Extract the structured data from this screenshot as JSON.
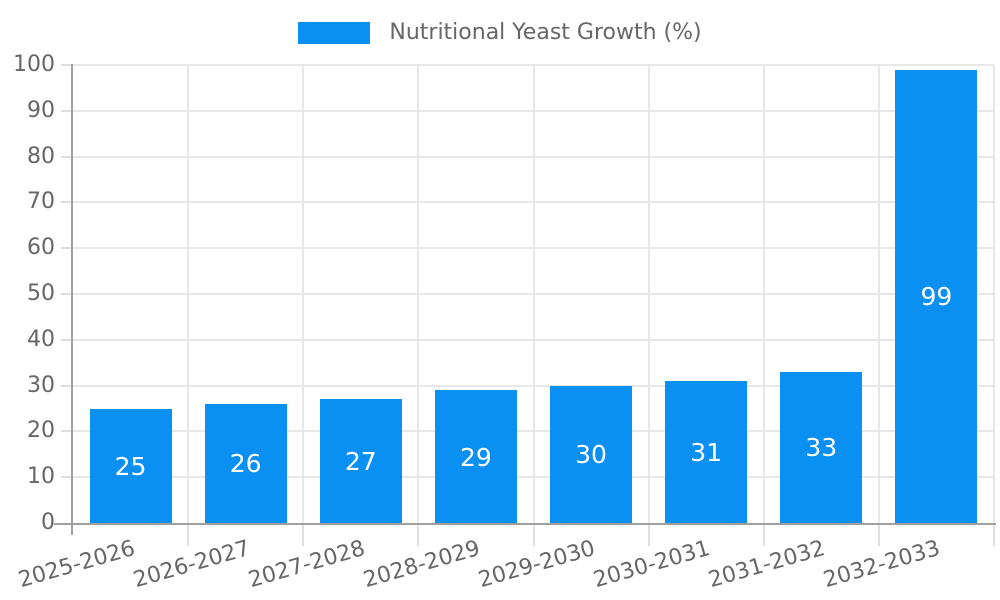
{
  "legend": {
    "label": "Nutritional Yeast Growth (%)"
  },
  "chart_data": {
    "type": "bar",
    "title": "Nutritional Yeast Growth (%)",
    "series_name": "Nutritional Yeast Growth (%)",
    "categories": [
      "2025-2026",
      "2026-2027",
      "2027-2028",
      "2028-2029",
      "2029-2030",
      "2030-2031",
      "2031-2032",
      "2032-2033"
    ],
    "values": [
      25,
      26,
      27,
      29,
      30,
      31,
      33,
      99
    ],
    "value_labels": [
      "25",
      "26",
      "27",
      "29",
      "30",
      "31",
      "33",
      "99"
    ],
    "xlabel": "",
    "ylabel": "",
    "ylim": [
      0,
      100
    ],
    "ytick_step": 10,
    "ytick_labels": [
      "0",
      "10",
      "20",
      "30",
      "40",
      "50",
      "60",
      "70",
      "80",
      "90",
      "100"
    ],
    "grid": true,
    "legend_position": "top",
    "value_label_position": "inside-center"
  },
  "colors": {
    "bar": "#0a8ff2",
    "value_label": "#ffffff",
    "tick_text": "#666666",
    "legend_text": "#666666",
    "grid": "#e7e7e7",
    "tick_mark": "#dedede",
    "axis": "#9f9f9f",
    "background": "#ffffff"
  }
}
